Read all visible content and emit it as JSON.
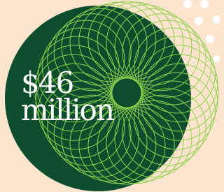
{
  "headline": {
    "amount": "$46",
    "unit": "million"
  }
}
